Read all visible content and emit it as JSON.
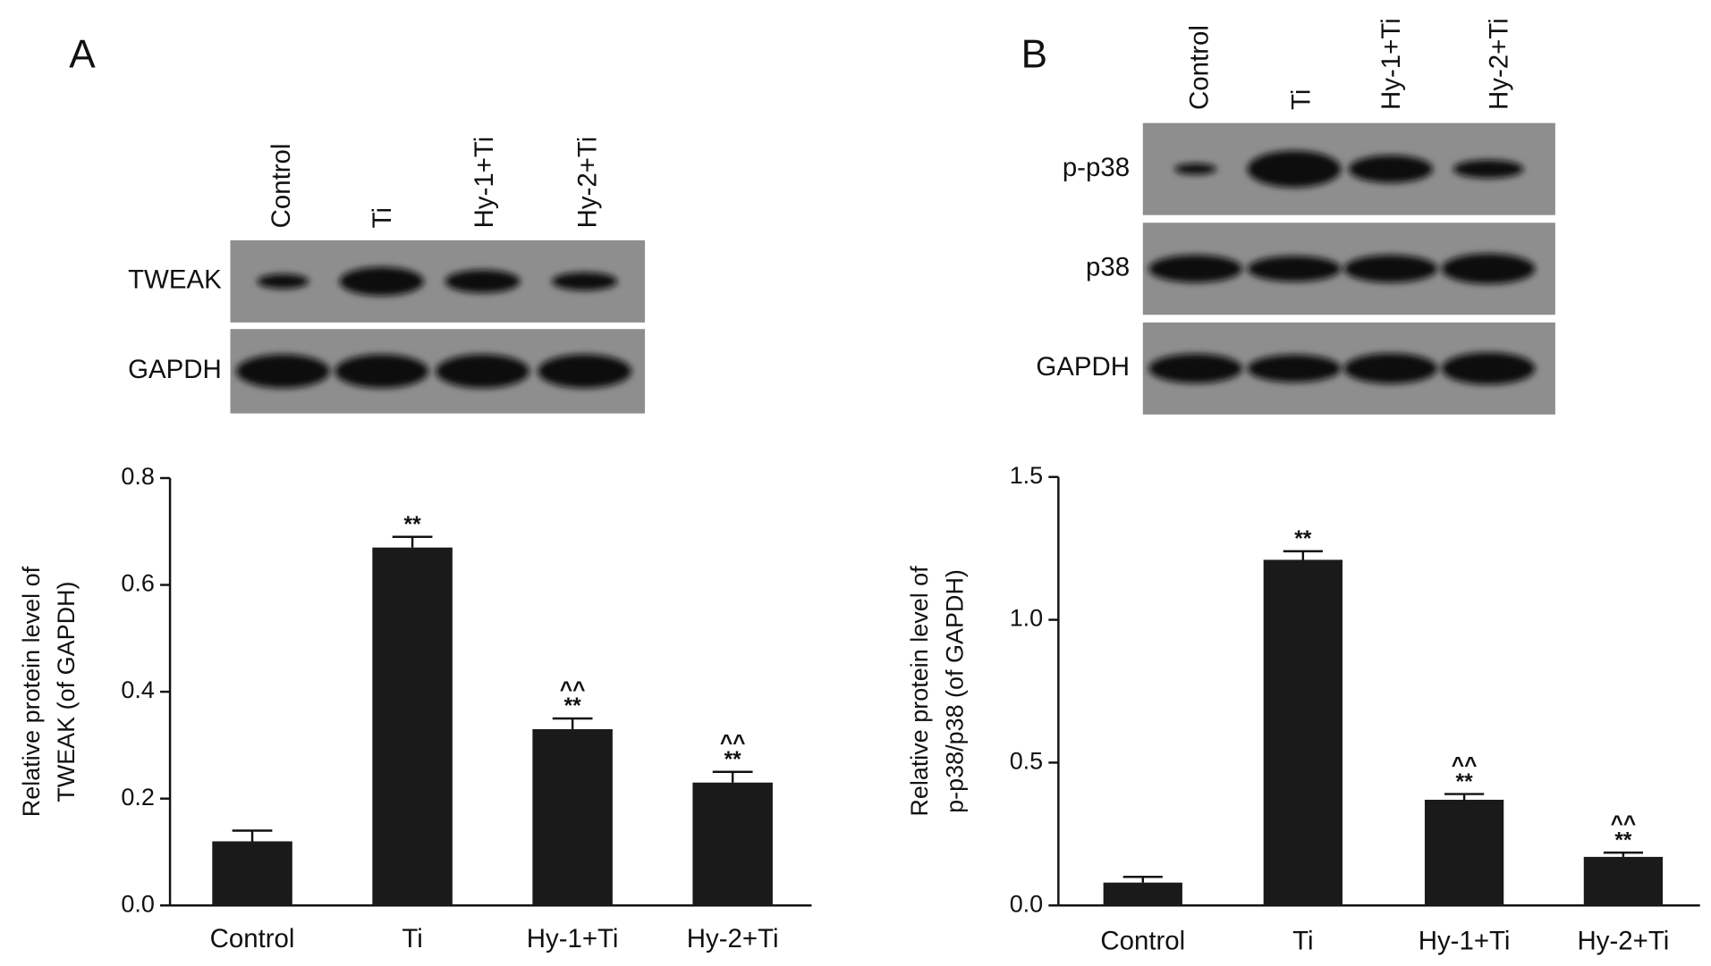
{
  "panels": [
    {
      "label": "A",
      "blot": {
        "lanes": [
          "Control",
          "Ti",
          "Hy-1+Ti",
          "Hy-2+Ti"
        ],
        "rows": [
          "TWEAK",
          "GAPDH"
        ]
      }
    },
    {
      "label": "B",
      "blot": {
        "lanes": [
          "Control",
          "Ti",
          "Hy-1+Ti",
          "Hy-2+Ti"
        ],
        "rows": [
          "p-p38",
          "p38",
          "GAPDH"
        ]
      }
    }
  ],
  "chart_data": [
    {
      "type": "bar",
      "ylabel": [
        "Relative protein level of",
        "TWEAK (of GAPDH)"
      ],
      "categories": [
        "Control",
        "Ti",
        "Hy-1+Ti",
        "Hy-2+Ti"
      ],
      "values": [
        0.12,
        0.67,
        0.33,
        0.23
      ],
      "errors": [
        0.02,
        0.02,
        0.02,
        0.02
      ],
      "significance": [
        null,
        [
          "**"
        ],
        [
          "^^",
          "**"
        ],
        [
          "^^",
          "**"
        ]
      ],
      "color": "#1a1a1a",
      "ylim": [
        0,
        0.8
      ],
      "yticks": [
        {
          "value": 0,
          "label": "0.0"
        },
        0.2,
        0.4,
        0.6,
        0.8
      ]
    },
    {
      "type": "bar",
      "ylabel": [
        "Relative protein level of",
        "p-p38/p38 (of GAPDH)"
      ],
      "categories": [
        "Control",
        "Ti",
        "Hy-1+Ti",
        "Hy-2+Ti"
      ],
      "values": [
        0.08,
        1.21,
        0.37,
        0.17
      ],
      "errors": [
        0.02,
        0.03,
        0.02,
        0.015
      ],
      "significance": [
        null,
        [
          "**"
        ],
        [
          "^^",
          "**"
        ],
        [
          "^^",
          "**"
        ]
      ],
      "color": "#1a1a1a",
      "ylim": [
        0,
        1.5
      ],
      "yticks": [
        {
          "value": 0,
          "label": "0.0"
        },
        0.5,
        {
          "value": 1,
          "label": "1.0"
        },
        1.5
      ]
    }
  ]
}
